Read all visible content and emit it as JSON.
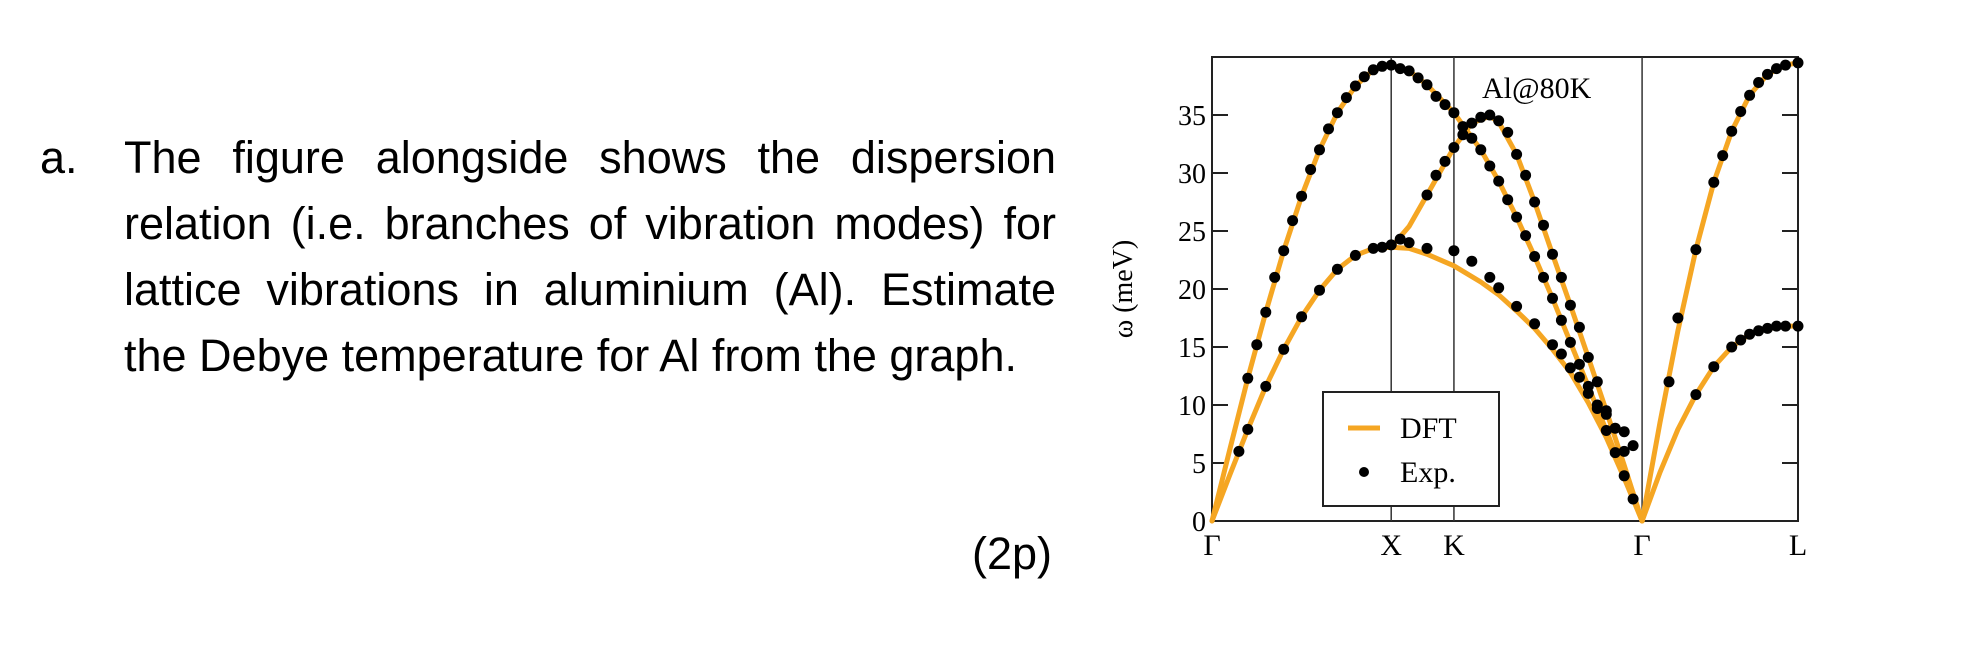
{
  "question": {
    "label": "a.",
    "text": "The figure alongside shows the dispersion relation (i.e. branches of vibration modes) for lattice vibrations in aluminium (Al). Estimate the Debye temperature for Al from the graph.",
    "points": "(2p)"
  },
  "chart_data": {
    "type": "line",
    "title": "",
    "annotation": "Al@80K",
    "ylabel": "ω (meV)",
    "ylim": [
      0,
      40
    ],
    "yticks": [
      "0",
      "5",
      "10",
      "15",
      "20",
      "25",
      "30",
      "35"
    ],
    "xticks": [
      "Γ",
      "X",
      "K",
      "Γ",
      "L"
    ],
    "xtick_positions": [
      0,
      1.0,
      1.35,
      2.4,
      3.27
    ],
    "legend": {
      "placement": "bottom-center",
      "entries": [
        "DFT",
        "Exp."
      ]
    },
    "colors": {
      "dft": "#f5a623",
      "exp": "#000000"
    },
    "series": [
      {
        "kind": "DFT",
        "x": [
          0,
          0.1,
          0.2,
          0.3,
          0.4,
          0.5,
          0.6,
          0.7,
          0.8,
          0.9,
          1.0,
          1.1,
          1.2,
          1.35,
          1.5,
          1.6,
          1.7,
          1.8,
          1.9,
          2.0,
          2.1,
          2.2,
          2.3,
          2.4
        ],
        "y": [
          0,
          6.2,
          12.3,
          18.0,
          23.3,
          28.0,
          32.0,
          35.2,
          37.5,
          38.9,
          39.3,
          38.8,
          37.6,
          35.2,
          32.0,
          29.3,
          26.2,
          22.8,
          19.2,
          15.4,
          11.6,
          7.8,
          3.9,
          0
        ]
      },
      {
        "kind": "DFT",
        "x": [
          0,
          0.1,
          0.2,
          0.3,
          0.4,
          0.5,
          0.6,
          0.7,
          0.8,
          0.9,
          1.0,
          1.1,
          1.2,
          1.35,
          1.5,
          1.6,
          1.7,
          1.8,
          1.9,
          2.0,
          2.1,
          2.2,
          2.3,
          2.4
        ],
        "y": [
          0,
          4.0,
          7.9,
          11.6,
          14.8,
          17.6,
          19.9,
          21.7,
          22.9,
          23.5,
          23.6,
          23.5,
          23.0,
          22.0,
          20.6,
          19.5,
          18.1,
          16.6,
          14.8,
          12.8,
          10.2,
          7.2,
          3.7,
          0
        ]
      },
      {
        "kind": "DFT",
        "x": [
          1.0,
          1.1,
          1.2,
          1.35,
          1.45,
          1.55,
          1.6,
          1.7,
          1.8,
          1.9,
          2.0,
          2.1,
          2.2,
          2.3,
          2.4
        ],
        "y": [
          23.6,
          25.4,
          28.1,
          32.2,
          34.3,
          34.9,
          34.4,
          31.6,
          27.5,
          23.0,
          18.6,
          14.1,
          9.5,
          4.8,
          0
        ]
      },
      {
        "kind": "DFT",
        "x": [
          2.4,
          2.5,
          2.6,
          2.7,
          2.8,
          2.9,
          3.0,
          3.1,
          3.2,
          3.27
        ],
        "y": [
          0,
          8.5,
          16.4,
          23.4,
          29.2,
          33.6,
          36.7,
          38.5,
          39.3,
          39.5
        ]
      },
      {
        "kind": "DFT",
        "x": [
          2.4,
          2.5,
          2.6,
          2.7,
          2.8,
          2.9,
          3.0,
          3.1,
          3.2,
          3.27
        ],
        "y": [
          0,
          4.2,
          7.9,
          10.9,
          13.3,
          15.0,
          16.1,
          16.6,
          16.8,
          16.8
        ]
      },
      {
        "kind": "Exp.",
        "x": [
          0.2,
          0.25,
          0.3,
          0.35,
          0.4,
          0.45,
          0.5,
          0.55,
          0.6,
          0.65,
          0.7,
          0.75,
          0.8,
          0.85,
          0.9,
          0.95,
          1.0,
          1.05,
          1.1,
          1.15,
          1.2,
          1.25,
          1.3,
          1.35,
          1.4,
          1.45,
          1.5,
          1.55,
          1.6,
          1.65,
          1.7,
          1.75,
          1.8,
          1.85,
          1.9,
          1.95,
          2.0,
          2.05,
          2.1,
          2.15,
          2.2,
          2.25,
          2.3,
          2.35
        ],
        "y": [
          12.3,
          15.2,
          18.0,
          21.0,
          23.3,
          25.9,
          28.0,
          30.3,
          32.0,
          33.8,
          35.2,
          36.5,
          37.5,
          38.3,
          38.9,
          39.2,
          39.3,
          39.0,
          38.8,
          38.2,
          37.6,
          36.6,
          35.9,
          35.2,
          34.0,
          33.0,
          32.0,
          30.6,
          29.3,
          27.7,
          26.2,
          24.6,
          22.8,
          21.0,
          19.2,
          17.3,
          15.4,
          13.5,
          11.6,
          9.7,
          7.8,
          5.9,
          3.9,
          1.9
        ]
      },
      {
        "kind": "Exp.",
        "x": [
          0.15,
          0.2,
          0.3,
          0.4,
          0.5,
          0.6,
          0.7,
          0.8,
          0.9,
          0.95,
          1.0,
          1.05,
          1.1,
          1.2,
          1.35,
          1.45,
          1.55,
          1.6,
          1.7,
          1.8,
          1.9,
          1.95,
          2.0,
          2.05,
          2.1,
          2.15,
          2.2,
          2.3,
          2.35
        ],
        "y": [
          6.0,
          7.9,
          11.6,
          14.8,
          17.6,
          19.9,
          21.7,
          22.9,
          23.5,
          23.6,
          23.8,
          24.3,
          24.0,
          23.5,
          23.3,
          22.4,
          21.0,
          20.1,
          18.5,
          17.0,
          15.2,
          14.4,
          13.2,
          12.4,
          11.0,
          10.0,
          9.2,
          7.7,
          6.5
        ]
      },
      {
        "kind": "Exp.",
        "x": [
          1.2,
          1.25,
          1.3,
          1.35,
          1.4,
          1.45,
          1.5,
          1.55,
          1.6,
          1.65,
          1.7,
          1.75,
          1.8,
          1.85,
          1.9,
          1.95,
          2.0,
          2.05,
          2.1,
          2.15,
          2.2,
          2.25,
          2.3
        ],
        "y": [
          28.1,
          29.8,
          31.0,
          32.2,
          33.3,
          34.3,
          34.8,
          35.0,
          34.5,
          33.5,
          31.6,
          29.8,
          27.5,
          25.5,
          23.0,
          21.0,
          18.6,
          16.7,
          14.1,
          12.0,
          9.5,
          8.0,
          6.0
        ]
      },
      {
        "kind": "Exp.",
        "x": [
          2.6,
          2.7,
          2.8,
          2.85,
          2.9,
          2.95,
          3.0,
          3.05,
          3.1,
          3.15,
          3.2,
          3.27
        ],
        "y": [
          17.5,
          23.4,
          29.2,
          31.5,
          33.6,
          35.3,
          36.7,
          37.8,
          38.5,
          39.0,
          39.3,
          39.5
        ]
      },
      {
        "kind": "Exp.",
        "x": [
          2.55,
          2.7,
          2.8,
          2.9,
          2.95,
          3.0,
          3.05,
          3.1,
          3.15,
          3.2,
          3.27
        ],
        "y": [
          12.0,
          10.9,
          13.3,
          15.0,
          15.6,
          16.1,
          16.4,
          16.6,
          16.8,
          16.8,
          16.8
        ]
      }
    ]
  }
}
